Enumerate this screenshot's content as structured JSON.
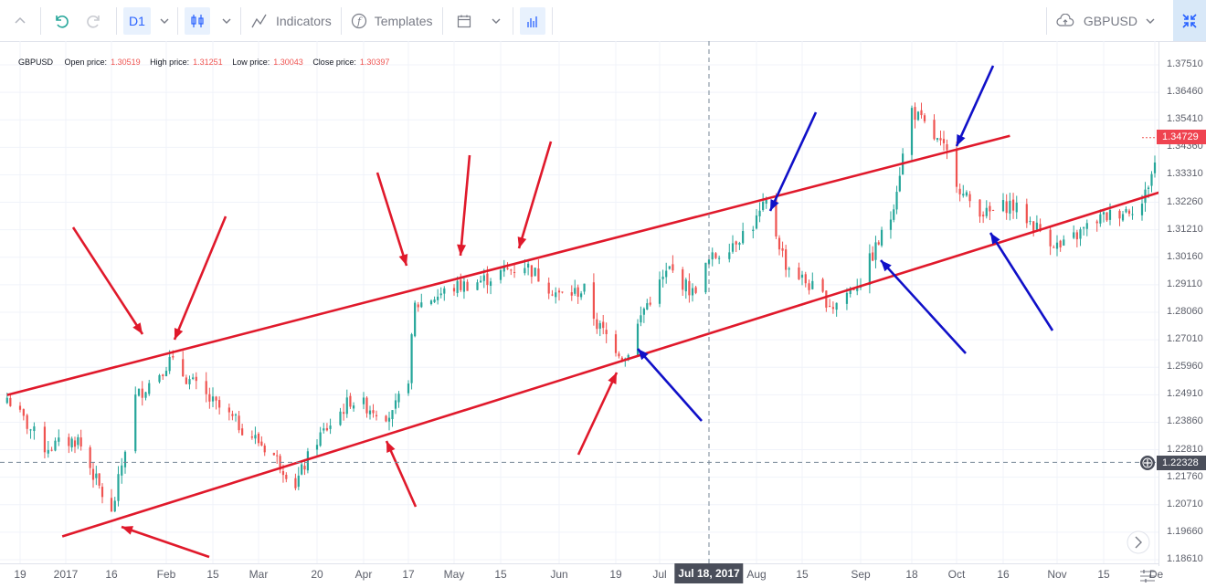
{
  "toolbar": {
    "interval": "D1",
    "indicators_label": "Indicators",
    "templates_label": "Templates",
    "symbol": "GBPUSD"
  },
  "legend": {
    "symbol": "GBPUSD",
    "open_label": "Open price:",
    "open": "1.30519",
    "high_label": "High price:",
    "high": "1.31251",
    "low_label": "Low price:",
    "low": "1.30043",
    "close_label": "Close price:",
    "close": "1.30397"
  },
  "crosshair": {
    "time_label": "Jul 18, 2017",
    "price_label": "1.22328"
  },
  "last_price": "1.34729",
  "colors": {
    "up": "#26a69a",
    "down": "#ef5350",
    "channel": "#e0192b",
    "blue_arrow": "#1010c8",
    "tag": "#ef4350",
    "cross_tag": "#4a4e5a"
  },
  "chart_data": {
    "type": "candlestick",
    "symbol": "GBPUSD",
    "interval": "D1",
    "y_ticks": [
      "1.37510",
      "1.36460",
      "1.35410",
      "1.34360",
      "1.33310",
      "1.32260",
      "1.31210",
      "1.30160",
      "1.29110",
      "1.28060",
      "1.27010",
      "1.25960",
      "1.24910",
      "1.23860",
      "1.22810",
      "1.21760",
      "1.20710",
      "1.19660",
      "1.18610"
    ],
    "x_ticks": [
      "19",
      "2017",
      "16",
      "Feb",
      "15",
      "Mar",
      "20",
      "Apr",
      "17",
      "May",
      "15",
      "Jun",
      "19",
      "Jul",
      "Aug",
      "15",
      "Sep",
      "18",
      "Oct",
      "16",
      "Nov",
      "15",
      "De"
    ],
    "ylim": [
      1.1861,
      1.3751
    ],
    "close_path": [
      [
        "2016-12-15",
        1.248
      ],
      [
        "2016-12-26",
        1.229
      ],
      [
        "2017-01-05",
        1.232
      ],
      [
        "2017-01-16",
        1.203
      ],
      [
        "2017-01-23",
        1.248
      ],
      [
        "2017-02-02",
        1.262
      ],
      [
        "2017-02-14",
        1.247
      ],
      [
        "2017-03-06",
        1.226
      ],
      [
        "2017-03-13",
        1.215
      ],
      [
        "2017-03-20",
        1.232
      ],
      [
        "2017-03-30",
        1.247
      ],
      [
        "2017-04-12",
        1.241
      ],
      [
        "2017-04-17",
        1.256
      ],
      [
        "2017-04-19",
        1.283
      ],
      [
        "2017-05-01",
        1.29
      ],
      [
        "2017-05-10",
        1.293
      ],
      [
        "2017-05-22",
        1.299
      ],
      [
        "2017-06-01",
        1.287
      ],
      [
        "2017-06-09",
        1.289
      ],
      [
        "2017-06-13",
        1.276
      ],
      [
        "2017-06-22",
        1.263
      ],
      [
        "2017-06-28",
        1.282
      ],
      [
        "2017-07-06",
        1.297
      ],
      [
        "2017-07-13",
        1.288
      ],
      [
        "2017-07-18",
        1.3
      ],
      [
        "2017-07-31",
        1.314
      ],
      [
        "2017-08-04",
        1.322
      ],
      [
        "2017-08-10",
        1.299
      ],
      [
        "2017-08-24",
        1.283
      ],
      [
        "2017-09-01",
        1.293
      ],
      [
        "2017-09-11",
        1.317
      ],
      [
        "2017-09-18",
        1.358
      ],
      [
        "2017-09-29",
        1.341
      ],
      [
        "2017-10-04",
        1.325
      ],
      [
        "2017-10-11",
        1.318
      ],
      [
        "2017-10-18",
        1.322
      ],
      [
        "2017-11-02",
        1.305
      ],
      [
        "2017-11-13",
        1.316
      ],
      [
        "2017-11-27",
        1.322
      ],
      [
        "2017-12-04",
        1.349
      ]
    ],
    "channel_lines": [
      {
        "name": "upper",
        "from": [
          "2016-12-15",
          1.249
        ],
        "to": [
          "2017-10-18",
          1.348
        ]
      },
      {
        "name": "lower",
        "from": [
          "2016-12-31",
          1.195
        ],
        "to": [
          "2017-12-04",
          1.327
        ]
      }
    ],
    "crosshair": {
      "x": "2017-07-18",
      "y": 1.22328
    },
    "last_price": 1.34729,
    "grid": true
  }
}
